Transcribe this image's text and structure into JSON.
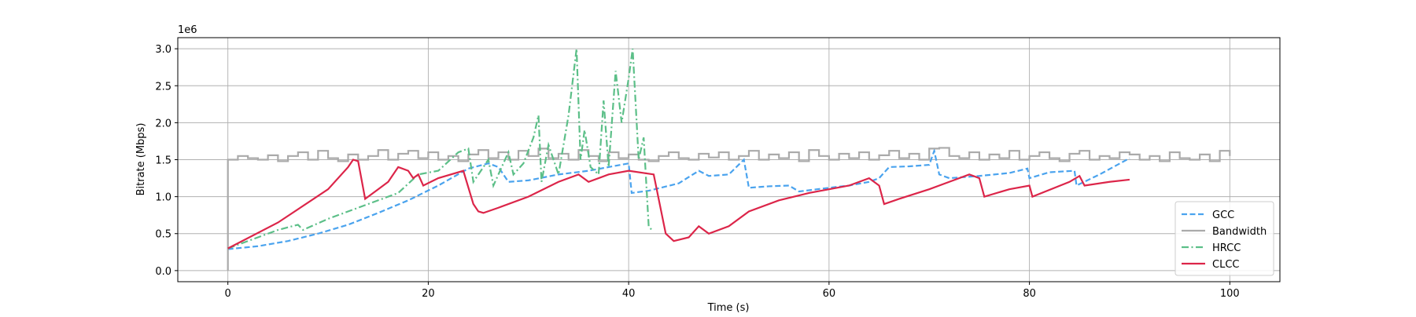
{
  "chart_data": {
    "type": "line",
    "x_label": "Time (s)",
    "y_label": "Bitrate (Mbps)",
    "y_offset_label": "1e6",
    "xlim": [
      -5,
      105
    ],
    "xticks": [
      0,
      20,
      40,
      60,
      80,
      100
    ],
    "ylim": [
      -150000,
      3150000
    ],
    "yticks": [
      {
        "value": 0,
        "label": "0.0"
      },
      {
        "value": 500000,
        "label": "0.5"
      },
      {
        "value": 1000000,
        "label": "1.0"
      },
      {
        "value": 1500000,
        "label": "1.5"
      },
      {
        "value": 2000000,
        "label": "2.0"
      },
      {
        "value": 2500000,
        "label": "2.5"
      },
      {
        "value": 3000000,
        "label": "3.0"
      }
    ],
    "grid": true,
    "legend": "lower right",
    "series": [
      {
        "name": "GCC",
        "color": "#4aa3ee",
        "style": "dashed",
        "x": [
          0,
          3,
          6,
          9,
          12,
          15,
          18,
          21,
          24,
          26,
          27,
          28,
          30,
          33,
          36,
          38,
          40,
          40.3,
          42,
          45,
          47,
          48,
          50,
          51.5,
          52,
          54,
          56,
          57,
          60,
          62,
          64,
          65,
          66,
          68,
          70,
          70.5,
          71,
          72,
          75,
          78,
          79.8,
          80,
          82,
          84.5,
          84.7,
          87,
          90
        ],
        "values": [
          290000,
          330000,
          400000,
          500000,
          620000,
          780000,
          950000,
          1150000,
          1380000,
          1450000,
          1400000,
          1200000,
          1220000,
          1300000,
          1350000,
          1400000,
          1450000,
          1050000,
          1080000,
          1180000,
          1350000,
          1280000,
          1300000,
          1500000,
          1120000,
          1140000,
          1150000,
          1070000,
          1120000,
          1150000,
          1200000,
          1250000,
          1400000,
          1410000,
          1430000,
          1620000,
          1300000,
          1250000,
          1280000,
          1320000,
          1380000,
          1250000,
          1330000,
          1350000,
          1150000,
          1300000,
          1520000
        ]
      },
      {
        "name": "Bandwidth",
        "color": "#aaaaaa",
        "style": "steps",
        "x": [
          0,
          0,
          1,
          2,
          3,
          4,
          5,
          6,
          7,
          8,
          9,
          10,
          11,
          12,
          13,
          14,
          15,
          16,
          17,
          18,
          19,
          20,
          21,
          22,
          23,
          24,
          25,
          26,
          27,
          28,
          29,
          30,
          31,
          32,
          33,
          34,
          35,
          36,
          37,
          38,
          39,
          40,
          41,
          42,
          43,
          44,
          45,
          46,
          47,
          48,
          49,
          50,
          51,
          52,
          53,
          54,
          55,
          56,
          57,
          58,
          59,
          60,
          61,
          62,
          63,
          64,
          65,
          66,
          67,
          68,
          69,
          70,
          71,
          72,
          73,
          74,
          75,
          76,
          77,
          78,
          79,
          80,
          81,
          82,
          83,
          84,
          85,
          86,
          87,
          88,
          89,
          90,
          91,
          92,
          93,
          94,
          95,
          96,
          97,
          98,
          99,
          100
        ],
        "values": [
          0,
          1500000,
          1550000,
          1520000,
          1500000,
          1560000,
          1480000,
          1550000,
          1600000,
          1500000,
          1620000,
          1520000,
          1480000,
          1570000,
          1500000,
          1550000,
          1630000,
          1500000,
          1580000,
          1620000,
          1520000,
          1600000,
          1500000,
          1550000,
          1480000,
          1570000,
          1630000,
          1520000,
          1600000,
          1500000,
          1620000,
          1550000,
          1650000,
          1520000,
          1580000,
          1500000,
          1630000,
          1550000,
          1480000,
          1600000,
          1520000,
          1570000,
          1500000,
          1480000,
          1550000,
          1600000,
          1520000,
          1500000,
          1580000,
          1530000,
          1600000,
          1500000,
          1550000,
          1620000,
          1500000,
          1570000,
          1520000,
          1600000,
          1480000,
          1630000,
          1550000,
          1500000,
          1580000,
          1520000,
          1600000,
          1500000,
          1560000,
          1620000,
          1520000,
          1580000,
          1500000,
          1650000,
          1660000,
          1550000,
          1520000,
          1600000,
          1500000,
          1570000,
          1520000,
          1620000,
          1500000,
          1550000,
          1600000,
          1520000,
          1480000,
          1580000,
          1620000,
          1500000,
          1550000,
          1520000,
          1600000,
          1570000,
          1500000,
          1550000,
          1480000,
          1600000,
          1520000,
          1500000,
          1570000,
          1480000,
          1620000,
          1550000
        ]
      },
      {
        "name": "HRCC",
        "color": "#5cbf88",
        "style": "dashdot",
        "x": [
          0,
          5,
          7,
          7.5,
          10,
          14,
          17,
          19,
          21,
          23,
          24,
          24.5,
          26,
          26.5,
          28,
          28.5,
          29.5,
          30.5,
          31,
          31.3,
          32,
          33,
          34,
          34.8,
          35.2,
          35.6,
          36.2,
          37,
          37.5,
          38,
          38.7,
          39.3,
          40,
          40.4,
          41,
          41.5,
          42,
          42.3
        ],
        "values": [
          300000,
          550000,
          620000,
          550000,
          700000,
          900000,
          1050000,
          1300000,
          1350000,
          1600000,
          1650000,
          1200000,
          1500000,
          1150000,
          1600000,
          1300000,
          1450000,
          1800000,
          2100000,
          1200000,
          1700000,
          1300000,
          2100000,
          3000000,
          1500000,
          1900000,
          1400000,
          1300000,
          2300000,
          1400000,
          2700000,
          2000000,
          2600000,
          3000000,
          1500000,
          1800000,
          600000,
          550000
        ]
      },
      {
        "name": "CLCC",
        "color": "#dc2549",
        "style": "solid",
        "x": [
          0,
          5,
          10,
          12,
          12.5,
          13,
          13.7,
          15,
          16,
          17,
          18,
          18.5,
          19,
          19.5,
          21,
          23.5,
          24.5,
          25,
          25.5,
          27,
          30,
          33,
          35,
          36,
          38,
          40,
          42.5,
          43.7,
          44.5,
          46,
          47,
          48,
          50,
          52,
          55,
          58,
          62,
          64,
          65,
          65.5,
          67,
          70,
          72,
          74,
          75,
          75.5,
          78,
          80,
          80.3,
          84,
          85,
          85.5,
          88,
          90
        ],
        "values": [
          300000,
          650000,
          1100000,
          1400000,
          1500000,
          1480000,
          970000,
          1100000,
          1200000,
          1400000,
          1350000,
          1250000,
          1300000,
          1150000,
          1250000,
          1350000,
          900000,
          800000,
          780000,
          850000,
          1000000,
          1200000,
          1300000,
          1200000,
          1300000,
          1350000,
          1300000,
          500000,
          400000,
          450000,
          600000,
          500000,
          600000,
          800000,
          950000,
          1050000,
          1150000,
          1250000,
          1150000,
          900000,
          970000,
          1100000,
          1200000,
          1300000,
          1250000,
          1000000,
          1100000,
          1150000,
          1000000,
          1200000,
          1280000,
          1150000,
          1200000,
          1230000
        ]
      }
    ]
  }
}
